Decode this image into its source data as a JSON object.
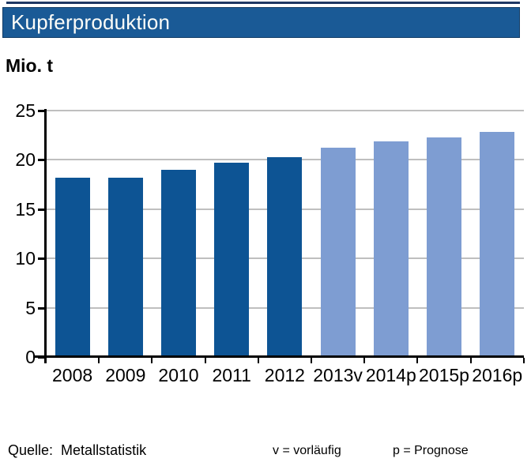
{
  "header": {
    "title": "Kupferproduktion"
  },
  "chart_data": {
    "type": "bar",
    "title": "Kupferproduktion",
    "ylabel": "Mio. t",
    "xlabel": "",
    "categories": [
      "2008",
      "2009",
      "2010",
      "2011",
      "2012",
      "2013v",
      "2014p",
      "2015p",
      "2016p"
    ],
    "values": [
      18.2,
      18.2,
      19.0,
      19.7,
      20.3,
      21.2,
      21.9,
      22.3,
      22.8
    ],
    "bar_color_keys": [
      "actual",
      "actual",
      "actual",
      "actual",
      "actual",
      "forecast",
      "forecast",
      "forecast",
      "forecast"
    ],
    "colors": {
      "actual": "#0D5494",
      "forecast": "#7E9DD2"
    },
    "ylim": [
      0,
      25
    ],
    "yticks": [
      0,
      5,
      10,
      15,
      20,
      25
    ],
    "grid": true,
    "gridline_color": "#BFBFBF",
    "legend_position": "none"
  },
  "footer": {
    "source_label": "Quelle:",
    "source_value": "Metallstatistik",
    "legend_v": "v = vorläufig",
    "legend_p": "p = Prognose"
  },
  "colors": {
    "header_bg": "#1A5A96",
    "top_line": "#1F3864",
    "axis": "#000000"
  }
}
